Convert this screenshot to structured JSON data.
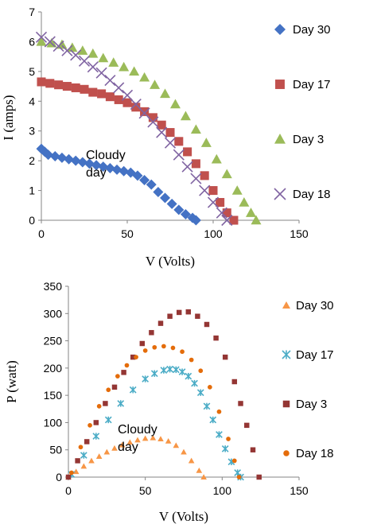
{
  "chart_data": [
    {
      "type": "scatter",
      "xlabel": "V (Volts)",
      "ylabel": "I (amps)",
      "xlim": [
        0,
        150
      ],
      "ylim": [
        0,
        7
      ],
      "xticks": [
        "0",
        "50",
        "100",
        "150"
      ],
      "yticks": [
        "0",
        "1",
        "2",
        "3",
        "4",
        "5",
        "6",
        "7"
      ],
      "annotation": [
        "Cloudy",
        "day"
      ],
      "legend_position": "right",
      "series": [
        {
          "name": "Day 30",
          "marker": "diamond",
          "color": "#4472C4",
          "x": [
            0,
            2,
            4,
            8,
            12,
            16,
            20,
            24,
            28,
            32,
            36,
            40,
            44,
            48,
            52,
            56,
            60,
            64,
            68,
            72,
            76,
            80,
            84,
            88,
            90
          ],
          "y": [
            2.4,
            2.3,
            2.2,
            2.15,
            2.1,
            2.05,
            2.0,
            1.95,
            1.9,
            1.85,
            1.8,
            1.75,
            1.7,
            1.65,
            1.6,
            1.5,
            1.35,
            1.2,
            0.95,
            0.75,
            0.55,
            0.35,
            0.2,
            0.08,
            0.0
          ]
        },
        {
          "name": "Day 17",
          "marker": "square",
          "color": "#C0504D",
          "x": [
            0,
            5,
            10,
            15,
            20,
            25,
            30,
            35,
            40,
            45,
            50,
            55,
            60,
            65,
            70,
            75,
            80,
            85,
            90,
            95,
            100,
            104,
            108,
            112
          ],
          "y": [
            4.65,
            4.6,
            4.55,
            4.5,
            4.45,
            4.4,
            4.3,
            4.25,
            4.15,
            4.05,
            3.95,
            3.8,
            3.65,
            3.45,
            3.2,
            2.95,
            2.65,
            2.3,
            1.9,
            1.5,
            1.0,
            0.6,
            0.25,
            0.0
          ]
        },
        {
          "name": "Day 3",
          "marker": "triangle",
          "color": "#9BBB59",
          "x": [
            0,
            6,
            12,
            18,
            24,
            30,
            36,
            42,
            48,
            54,
            60,
            66,
            72,
            78,
            84,
            90,
            96,
            102,
            108,
            114,
            118,
            122,
            125
          ],
          "y": [
            6.0,
            5.95,
            5.9,
            5.8,
            5.7,
            5.6,
            5.45,
            5.3,
            5.15,
            5.0,
            4.8,
            4.55,
            4.25,
            3.9,
            3.5,
            3.05,
            2.6,
            2.05,
            1.55,
            1.0,
            0.6,
            0.25,
            0.0
          ]
        },
        {
          "name": "Day 18",
          "marker": "x",
          "color": "#8064A2",
          "x": [
            0,
            5,
            10,
            15,
            20,
            25,
            30,
            35,
            40,
            45,
            50,
            55,
            60,
            65,
            70,
            75,
            80,
            85,
            90,
            95,
            100,
            105,
            108
          ],
          "y": [
            6.15,
            6.0,
            5.85,
            5.7,
            5.55,
            5.35,
            5.15,
            4.95,
            4.7,
            4.45,
            4.2,
            3.9,
            3.6,
            3.3,
            2.95,
            2.6,
            2.2,
            1.8,
            1.4,
            1.0,
            0.6,
            0.25,
            0.0
          ]
        }
      ]
    },
    {
      "type": "scatter",
      "xlabel": "V (Volts)",
      "ylabel": "P (watt)",
      "xlim": [
        0,
        150
      ],
      "ylim": [
        0,
        350
      ],
      "xticks": [
        "0",
        "50",
        "100",
        "150"
      ],
      "yticks": [
        "0",
        "50",
        "100",
        "150",
        "200",
        "250",
        "300",
        "350"
      ],
      "annotation": [
        "Cloudy",
        "day"
      ],
      "legend_position": "right",
      "series": [
        {
          "name": "Day 30",
          "marker": "triangle",
          "color": "#F79646",
          "x": [
            0,
            5,
            10,
            15,
            20,
            25,
            30,
            35,
            40,
            45,
            50,
            55,
            60,
            65,
            70,
            75,
            80,
            85,
            88
          ],
          "y": [
            0,
            10,
            20,
            30,
            38,
            46,
            53,
            59,
            64,
            68,
            71,
            72,
            70,
            66,
            58,
            46,
            30,
            12,
            0
          ]
        },
        {
          "name": "Day 17",
          "marker": "asterisk",
          "color": "#4BACC6",
          "x": [
            2,
            10,
            18,
            26,
            34,
            42,
            50,
            56,
            62,
            66,
            70,
            74,
            78,
            82,
            86,
            90,
            94,
            98,
            102,
            106,
            110,
            112
          ],
          "y": [
            5,
            40,
            75,
            105,
            135,
            160,
            180,
            190,
            196,
            198,
            197,
            193,
            185,
            172,
            155,
            130,
            105,
            78,
            52,
            28,
            8,
            0
          ]
        },
        {
          "name": "Day 3",
          "marker": "square",
          "color": "#943634",
          "x": [
            0,
            6,
            12,
            18,
            24,
            30,
            36,
            42,
            48,
            54,
            60,
            66,
            72,
            78,
            84,
            90,
            96,
            102,
            108,
            112,
            116,
            120,
            124
          ],
          "y": [
            0,
            30,
            65,
            100,
            135,
            165,
            192,
            220,
            245,
            265,
            282,
            295,
            302,
            303,
            295,
            280,
            255,
            220,
            175,
            135,
            95,
            50,
            0
          ]
        },
        {
          "name": "Day 18",
          "marker": "circle",
          "color": "#E46C0A",
          "x": [
            2,
            8,
            14,
            20,
            26,
            32,
            38,
            44,
            50,
            56,
            62,
            68,
            74,
            80,
            86,
            92,
            98,
            104,
            108,
            111
          ],
          "y": [
            8,
            55,
            95,
            130,
            160,
            185,
            205,
            220,
            232,
            238,
            240,
            237,
            230,
            215,
            195,
            165,
            120,
            70,
            30,
            0
          ]
        }
      ]
    }
  ]
}
